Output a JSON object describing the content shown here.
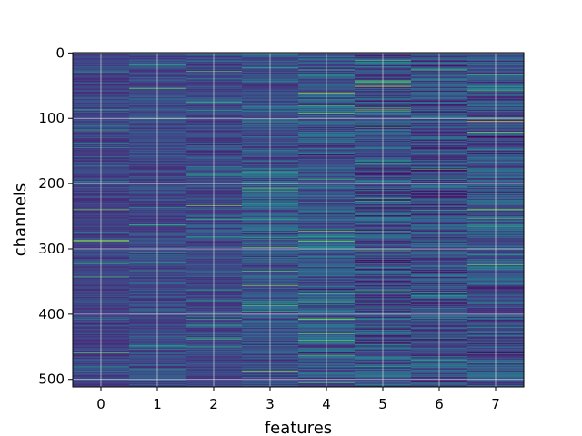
{
  "chart_data": {
    "type": "heatmap",
    "title": "",
    "xlabel": "features",
    "ylabel": "channels",
    "x_categories": [
      "0",
      "1",
      "2",
      "3",
      "4",
      "5",
      "6",
      "7"
    ],
    "y_ticks": [
      0,
      100,
      200,
      300,
      400,
      500
    ],
    "y_range": [
      0,
      511
    ],
    "rows": 512,
    "columns": 8,
    "y_inverted": true,
    "grid": true,
    "colormap": "viridis",
    "colors": {
      "grid": "#e8e8e8",
      "background_low": "#3b528b",
      "mid": "#21918c",
      "high": "#b5de2b"
    }
  }
}
